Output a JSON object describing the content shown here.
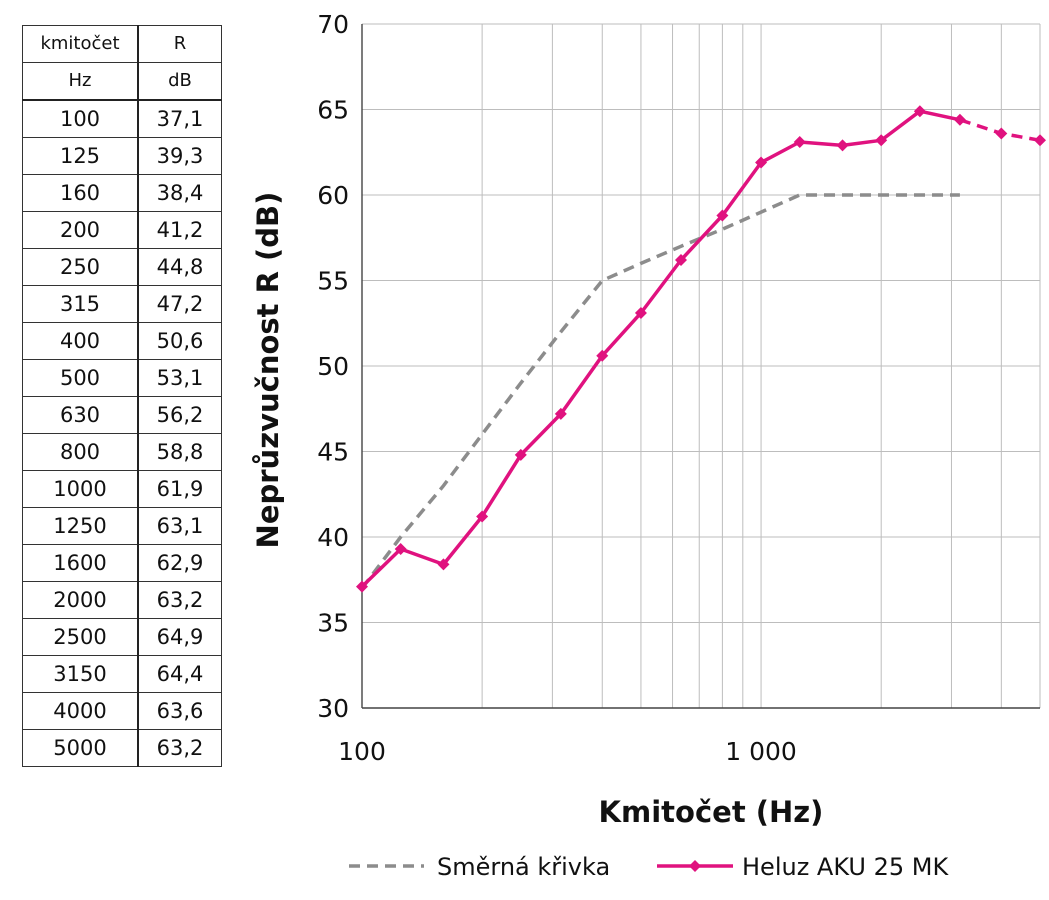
{
  "table": {
    "header": [
      {
        "c1": "kmitočet",
        "c2": "R"
      },
      {
        "c1": "Hz",
        "c2": "dB"
      }
    ],
    "rows": [
      {
        "c1": "100",
        "c2": "37,1"
      },
      {
        "c1": "125",
        "c2": "39,3"
      },
      {
        "c1": "160",
        "c2": "38,4"
      },
      {
        "c1": "200",
        "c2": "41,2"
      },
      {
        "c1": "250",
        "c2": "44,8"
      },
      {
        "c1": "315",
        "c2": "47,2"
      },
      {
        "c1": "400",
        "c2": "50,6"
      },
      {
        "c1": "500",
        "c2": "53,1"
      },
      {
        "c1": "630",
        "c2": "56,2"
      },
      {
        "c1": "800",
        "c2": "58,8"
      },
      {
        "c1": "1000",
        "c2": "61,9"
      },
      {
        "c1": "1250",
        "c2": "63,1"
      },
      {
        "c1": "1600",
        "c2": "62,9"
      },
      {
        "c1": "2000",
        "c2": "63,2"
      },
      {
        "c1": "2500",
        "c2": "64,9"
      },
      {
        "c1": "3150",
        "c2": "64,4"
      },
      {
        "c1": "4000",
        "c2": "63,6"
      },
      {
        "c1": "5000",
        "c2": "63,2"
      }
    ]
  },
  "chart_data": {
    "type": "line",
    "x_scale": "log",
    "xlim": [
      100,
      5000
    ],
    "ylim": [
      30,
      70
    ],
    "xlabel": "Kmitočet (Hz)",
    "ylabel": "Neprůzvučnost R (dB)",
    "x_ticks": [
      {
        "value": 100,
        "label": "100"
      },
      {
        "value": 1000,
        "label": "1 000"
      }
    ],
    "y_ticks": [
      30,
      35,
      40,
      45,
      50,
      55,
      60,
      65,
      70
    ],
    "grid": true,
    "legend_position": "bottom",
    "series": [
      {
        "name": "Směrná křivka",
        "color": "#8c8c8c",
        "style": "dashed",
        "x": [
          100,
          125,
          160,
          200,
          250,
          315,
          400,
          500,
          630,
          800,
          1000,
          1250,
          1600,
          2000,
          2500,
          3150
        ],
        "y": [
          37,
          40,
          43,
          46,
          49,
          52,
          55,
          56,
          57,
          58,
          59,
          60,
          60,
          60,
          60,
          60
        ]
      },
      {
        "name": "Heluz AKU 25 MK",
        "color": "#e0127f",
        "style": "solid-markers",
        "dashed_from_x": 3150,
        "x": [
          100,
          125,
          160,
          200,
          250,
          315,
          400,
          500,
          630,
          800,
          1000,
          1250,
          1600,
          2000,
          2500,
          3150,
          4000,
          5000
        ],
        "y": [
          37.1,
          39.3,
          38.4,
          41.2,
          44.8,
          47.2,
          50.6,
          53.1,
          56.2,
          58.8,
          61.9,
          63.1,
          62.9,
          63.2,
          64.9,
          64.4,
          63.6,
          63.2
        ]
      }
    ]
  }
}
